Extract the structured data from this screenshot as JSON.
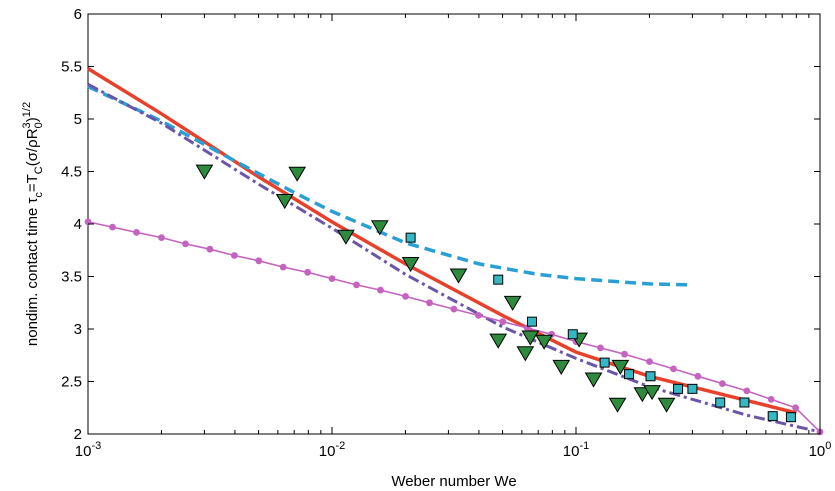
{
  "chart_data": {
    "type": "line",
    "xscale": "log",
    "xlim": [
      0.001,
      1
    ],
    "ylim": [
      2,
      6
    ],
    "grid": false,
    "legend": "none",
    "x_axis": {
      "label": "Weber number We",
      "ticks": [
        {
          "value": 0.001,
          "base": "10",
          "exp": "-3"
        },
        {
          "value": 0.01,
          "base": "10",
          "exp": "-2"
        },
        {
          "value": 0.1,
          "base": "10",
          "exp": "-1"
        },
        {
          "value": 1,
          "base": "10",
          "exp": "0"
        }
      ]
    },
    "y_axis": {
      "label_main": "nondim. contact time τ",
      "label_sub": "c",
      "label_eq": "=T",
      "label_sub2": "C",
      "label_paren": "(σ/ρR",
      "label_sup_r": "3",
      "label_sub_r": "0",
      "label_close": ")",
      "label_sup": "1/2",
      "ticks": [
        "2",
        "2.5",
        "3",
        "3.5",
        "4",
        "4.5",
        "5",
        "5.5",
        "6"
      ],
      "tick_values": [
        2,
        2.5,
        3,
        3.5,
        4,
        4.5,
        5,
        5.5,
        6
      ]
    },
    "series": [
      {
        "style": "solid",
        "color": "#e8412b",
        "x": [
          0.001,
          0.002,
          0.005,
          0.01,
          0.02,
          0.05,
          0.1,
          0.2,
          0.5,
          0.8
        ],
        "y": [
          5.48,
          5.05,
          4.45,
          4.02,
          3.62,
          3.13,
          2.78,
          2.55,
          2.32,
          2.2
        ]
      },
      {
        "style": "dashed",
        "color": "#2a9fd6",
        "x": [
          0.001,
          0.002,
          0.004,
          0.007,
          0.01,
          0.02,
          0.04,
          0.07,
          0.1,
          0.15,
          0.2,
          0.3
        ],
        "y": [
          5.31,
          4.98,
          4.6,
          4.3,
          4.12,
          3.82,
          3.62,
          3.52,
          3.48,
          3.45,
          3.43,
          3.42
        ]
      },
      {
        "style": "dashdot",
        "color": "#6b55a8",
        "x": [
          0.001,
          0.002,
          0.005,
          0.01,
          0.02,
          0.05,
          0.1,
          0.2,
          0.5,
          1
        ],
        "y": [
          5.33,
          4.96,
          4.38,
          3.96,
          3.52,
          3.02,
          2.72,
          2.45,
          2.18,
          2.02
        ]
      },
      {
        "style": "solid-dots",
        "color": "#c563c0",
        "x": [
          0.001,
          0.00126,
          0.00158,
          0.002,
          0.00251,
          0.00316,
          0.00398,
          0.00501,
          0.00631,
          0.00794,
          0.01,
          0.0126,
          0.0158,
          0.02,
          0.0251,
          0.0316,
          0.0398,
          0.0501,
          0.0631,
          0.0794,
          0.1,
          0.126,
          0.158,
          0.2,
          0.251,
          0.316,
          0.398,
          0.501,
          0.631,
          0.794,
          1
        ],
        "y": [
          4.02,
          3.97,
          3.92,
          3.87,
          3.81,
          3.76,
          3.7,
          3.65,
          3.59,
          3.54,
          3.48,
          3.42,
          3.37,
          3.31,
          3.25,
          3.19,
          3.13,
          3.07,
          3.01,
          2.95,
          2.88,
          2.82,
          2.76,
          2.69,
          2.62,
          2.55,
          2.48,
          2.41,
          2.33,
          2.25,
          2.02
        ]
      }
    ],
    "markers": [
      {
        "shape": "triangle-down",
        "fill": "#2e8b3e",
        "points": [
          {
            "x": 0.003,
            "y": 4.5
          },
          {
            "x": 0.0064,
            "y": 4.22
          },
          {
            "x": 0.0072,
            "y": 4.48
          },
          {
            "x": 0.0114,
            "y": 3.88
          },
          {
            "x": 0.0157,
            "y": 3.97
          },
          {
            "x": 0.021,
            "y": 3.62
          },
          {
            "x": 0.033,
            "y": 3.51
          },
          {
            "x": 0.048,
            "y": 2.89
          },
          {
            "x": 0.055,
            "y": 3.25
          },
          {
            "x": 0.062,
            "y": 2.77
          },
          {
            "x": 0.065,
            "y": 2.92
          },
          {
            "x": 0.074,
            "y": 2.88
          },
          {
            "x": 0.087,
            "y": 2.64
          },
          {
            "x": 0.103,
            "y": 2.9
          },
          {
            "x": 0.118,
            "y": 2.52
          },
          {
            "x": 0.148,
            "y": 2.28
          },
          {
            "x": 0.152,
            "y": 2.64
          },
          {
            "x": 0.187,
            "y": 2.38
          },
          {
            "x": 0.205,
            "y": 2.4
          },
          {
            "x": 0.235,
            "y": 2.28
          }
        ]
      },
      {
        "shape": "square",
        "fill": "#36b7c4",
        "points": [
          {
            "x": 0.021,
            "y": 3.87
          },
          {
            "x": 0.048,
            "y": 3.47
          },
          {
            "x": 0.066,
            "y": 3.07
          },
          {
            "x": 0.097,
            "y": 2.95
          },
          {
            "x": 0.131,
            "y": 2.68
          },
          {
            "x": 0.165,
            "y": 2.57
          },
          {
            "x": 0.202,
            "y": 2.55
          },
          {
            "x": 0.262,
            "y": 2.43
          },
          {
            "x": 0.3,
            "y": 2.43
          },
          {
            "x": 0.39,
            "y": 2.3
          },
          {
            "x": 0.49,
            "y": 2.3
          },
          {
            "x": 0.64,
            "y": 2.17
          },
          {
            "x": 0.76,
            "y": 2.16
          }
        ]
      }
    ]
  }
}
